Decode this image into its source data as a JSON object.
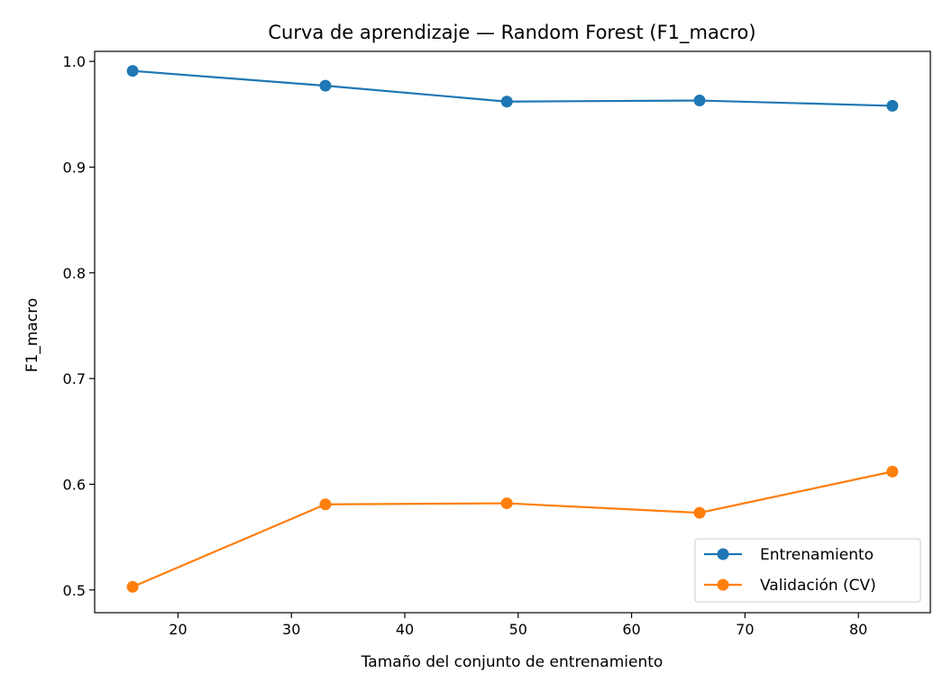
{
  "chart_data": {
    "type": "line",
    "title": "Curva de aprendizaje — Random Forest (F1_macro)",
    "xlabel": "Tamaño del conjunto de entrenamiento",
    "ylabel": "F1_macro",
    "xlim": [
      12.65,
      86.35
    ],
    "ylim": [
      0.4785,
      1.0095
    ],
    "xticks": [
      20,
      30,
      40,
      50,
      60,
      70,
      80
    ],
    "yticks": [
      0.5,
      0.6,
      0.7,
      0.8,
      0.9,
      1.0
    ],
    "xtick_labels": [
      "20",
      "30",
      "40",
      "50",
      "60",
      "70",
      "80"
    ],
    "ytick_labels": [
      "0.5",
      "0.6",
      "0.7",
      "0.8",
      "0.9",
      "1.0"
    ],
    "grid": false,
    "legend_position": "lower-right",
    "x": [
      16,
      33,
      49,
      66,
      83
    ],
    "series": [
      {
        "name": "Entrenamiento",
        "color": "#1f77b4",
        "values": [
          0.991,
          0.977,
          0.962,
          0.963,
          0.958
        ]
      },
      {
        "name": "Validación (CV)",
        "color": "#ff7f0e",
        "values": [
          0.503,
          0.581,
          0.582,
          0.573,
          0.612
        ]
      }
    ]
  }
}
